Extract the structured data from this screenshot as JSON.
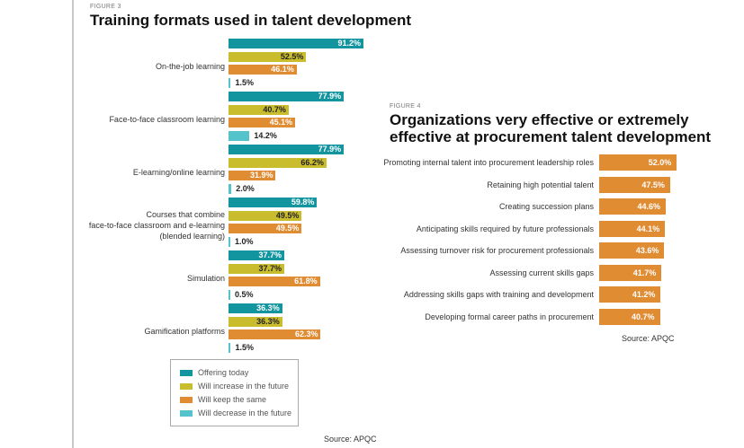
{
  "figure3": {
    "label": "FIGURE 3",
    "title": "Training formats used in talent development",
    "source": "Source: APQC"
  },
  "figure4": {
    "label": "FIGURE 4",
    "title_line1": "Organizations very effective or extremely",
    "title_line2": "effective at procurement talent development",
    "source": "Source: APQC"
  },
  "chart_data": [
    {
      "type": "bar",
      "orientation": "horizontal",
      "title": "Training formats used in talent development",
      "categories": [
        "On-the-job learning",
        "Face-to-face classroom learning",
        "E-learning/online learning",
        "Courses that combine\nface-to-face classroom and e-learning\n(blended learning)",
        "Simulation",
        "Gamification platforms"
      ],
      "series": [
        {
          "name": "Offering today",
          "color": "#13959f",
          "values": [
            91.2,
            77.9,
            77.9,
            59.8,
            37.7,
            36.3
          ]
        },
        {
          "name": "Will increase in the future",
          "color": "#c9bd2e",
          "values": [
            52.5,
            40.7,
            66.2,
            49.5,
            37.7,
            36.3
          ]
        },
        {
          "name": "Will keep the same",
          "color": "#e08c33",
          "values": [
            46.1,
            45.1,
            31.9,
            49.5,
            61.8,
            62.3
          ]
        },
        {
          "name": "Will decrease in the future",
          "color": "#55c3cb",
          "values": [
            1.5,
            14.2,
            2.0,
            1.0,
            0.5,
            1.5
          ]
        }
      ],
      "value_suffix": "%",
      "legend_position": "bottom",
      "xlim": [
        0,
        100
      ],
      "grid": false
    },
    {
      "type": "bar",
      "orientation": "horizontal",
      "title": "Organizations very effective or extremely effective at procurement talent development",
      "categories": [
        "Promoting internal talent into procurement leadership roles",
        "Retaining high potential talent",
        "Creating succession plans",
        "Anticipating skills required by future professionals",
        "Assessing turnover risk for procurement professionals",
        "Assessing current skills gaps",
        "Addressing skills gaps with training and development",
        "Developing formal career paths in procurement"
      ],
      "values": [
        52.0,
        47.5,
        44.6,
        44.1,
        43.6,
        41.7,
        41.2,
        40.7
      ],
      "color": "#e08c33",
      "value_suffix": "%",
      "xlim": [
        0,
        100
      ],
      "grid": false
    }
  ]
}
